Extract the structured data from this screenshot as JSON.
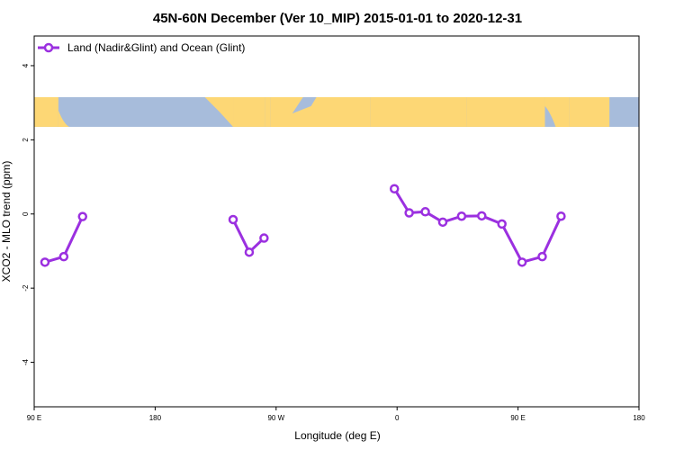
{
  "chart_data": {
    "type": "line",
    "title": "45N-60N December (Ver 10_MIP)   2015-01-01 to 2020-12-31",
    "xlabel": "Longitude (deg E)",
    "ylabel": "XCO2 - MLO trend (ppm)",
    "x_tick_positions": [
      90,
      180,
      270,
      360,
      450,
      540
    ],
    "x_tick_labels": [
      "90 E",
      "180",
      "90 W",
      "0",
      "90 E",
      "180"
    ],
    "xlim": [
      90,
      540
    ],
    "y_ticks": [
      -4,
      -2,
      0,
      2,
      4
    ],
    "ylim": [
      -5.2,
      4.8
    ],
    "grid": false,
    "legend_position": "top-left",
    "series_color": "#9B30E0",
    "map_band": {
      "y_range": [
        2.35,
        3.15
      ],
      "ocean_color": "#A7BCDB",
      "land_color": "#FDD775"
    },
    "series": [
      {
        "name": "Land (Nadir&Glint) and Ocean (Glint)",
        "segments": [
          {
            "x": [
              98,
              112,
              126
            ],
            "y": [
              -1.3,
              -1.15,
              -0.07
            ]
          },
          {
            "x": [
              238,
              250,
              261
            ],
            "y": [
              -0.15,
              -1.03,
              -0.65
            ]
          },
          {
            "x": [
              358,
              369,
              381,
              394,
              408,
              423,
              438,
              453,
              468,
              482,
              496
            ],
            "y": [
              0.68,
              0.03,
              0.06,
              -0.22,
              -0.06,
              -0.05,
              -0.27,
              -1.3,
              -1.15,
              -0.06,
              null
            ]
          }
        ]
      }
    ]
  }
}
